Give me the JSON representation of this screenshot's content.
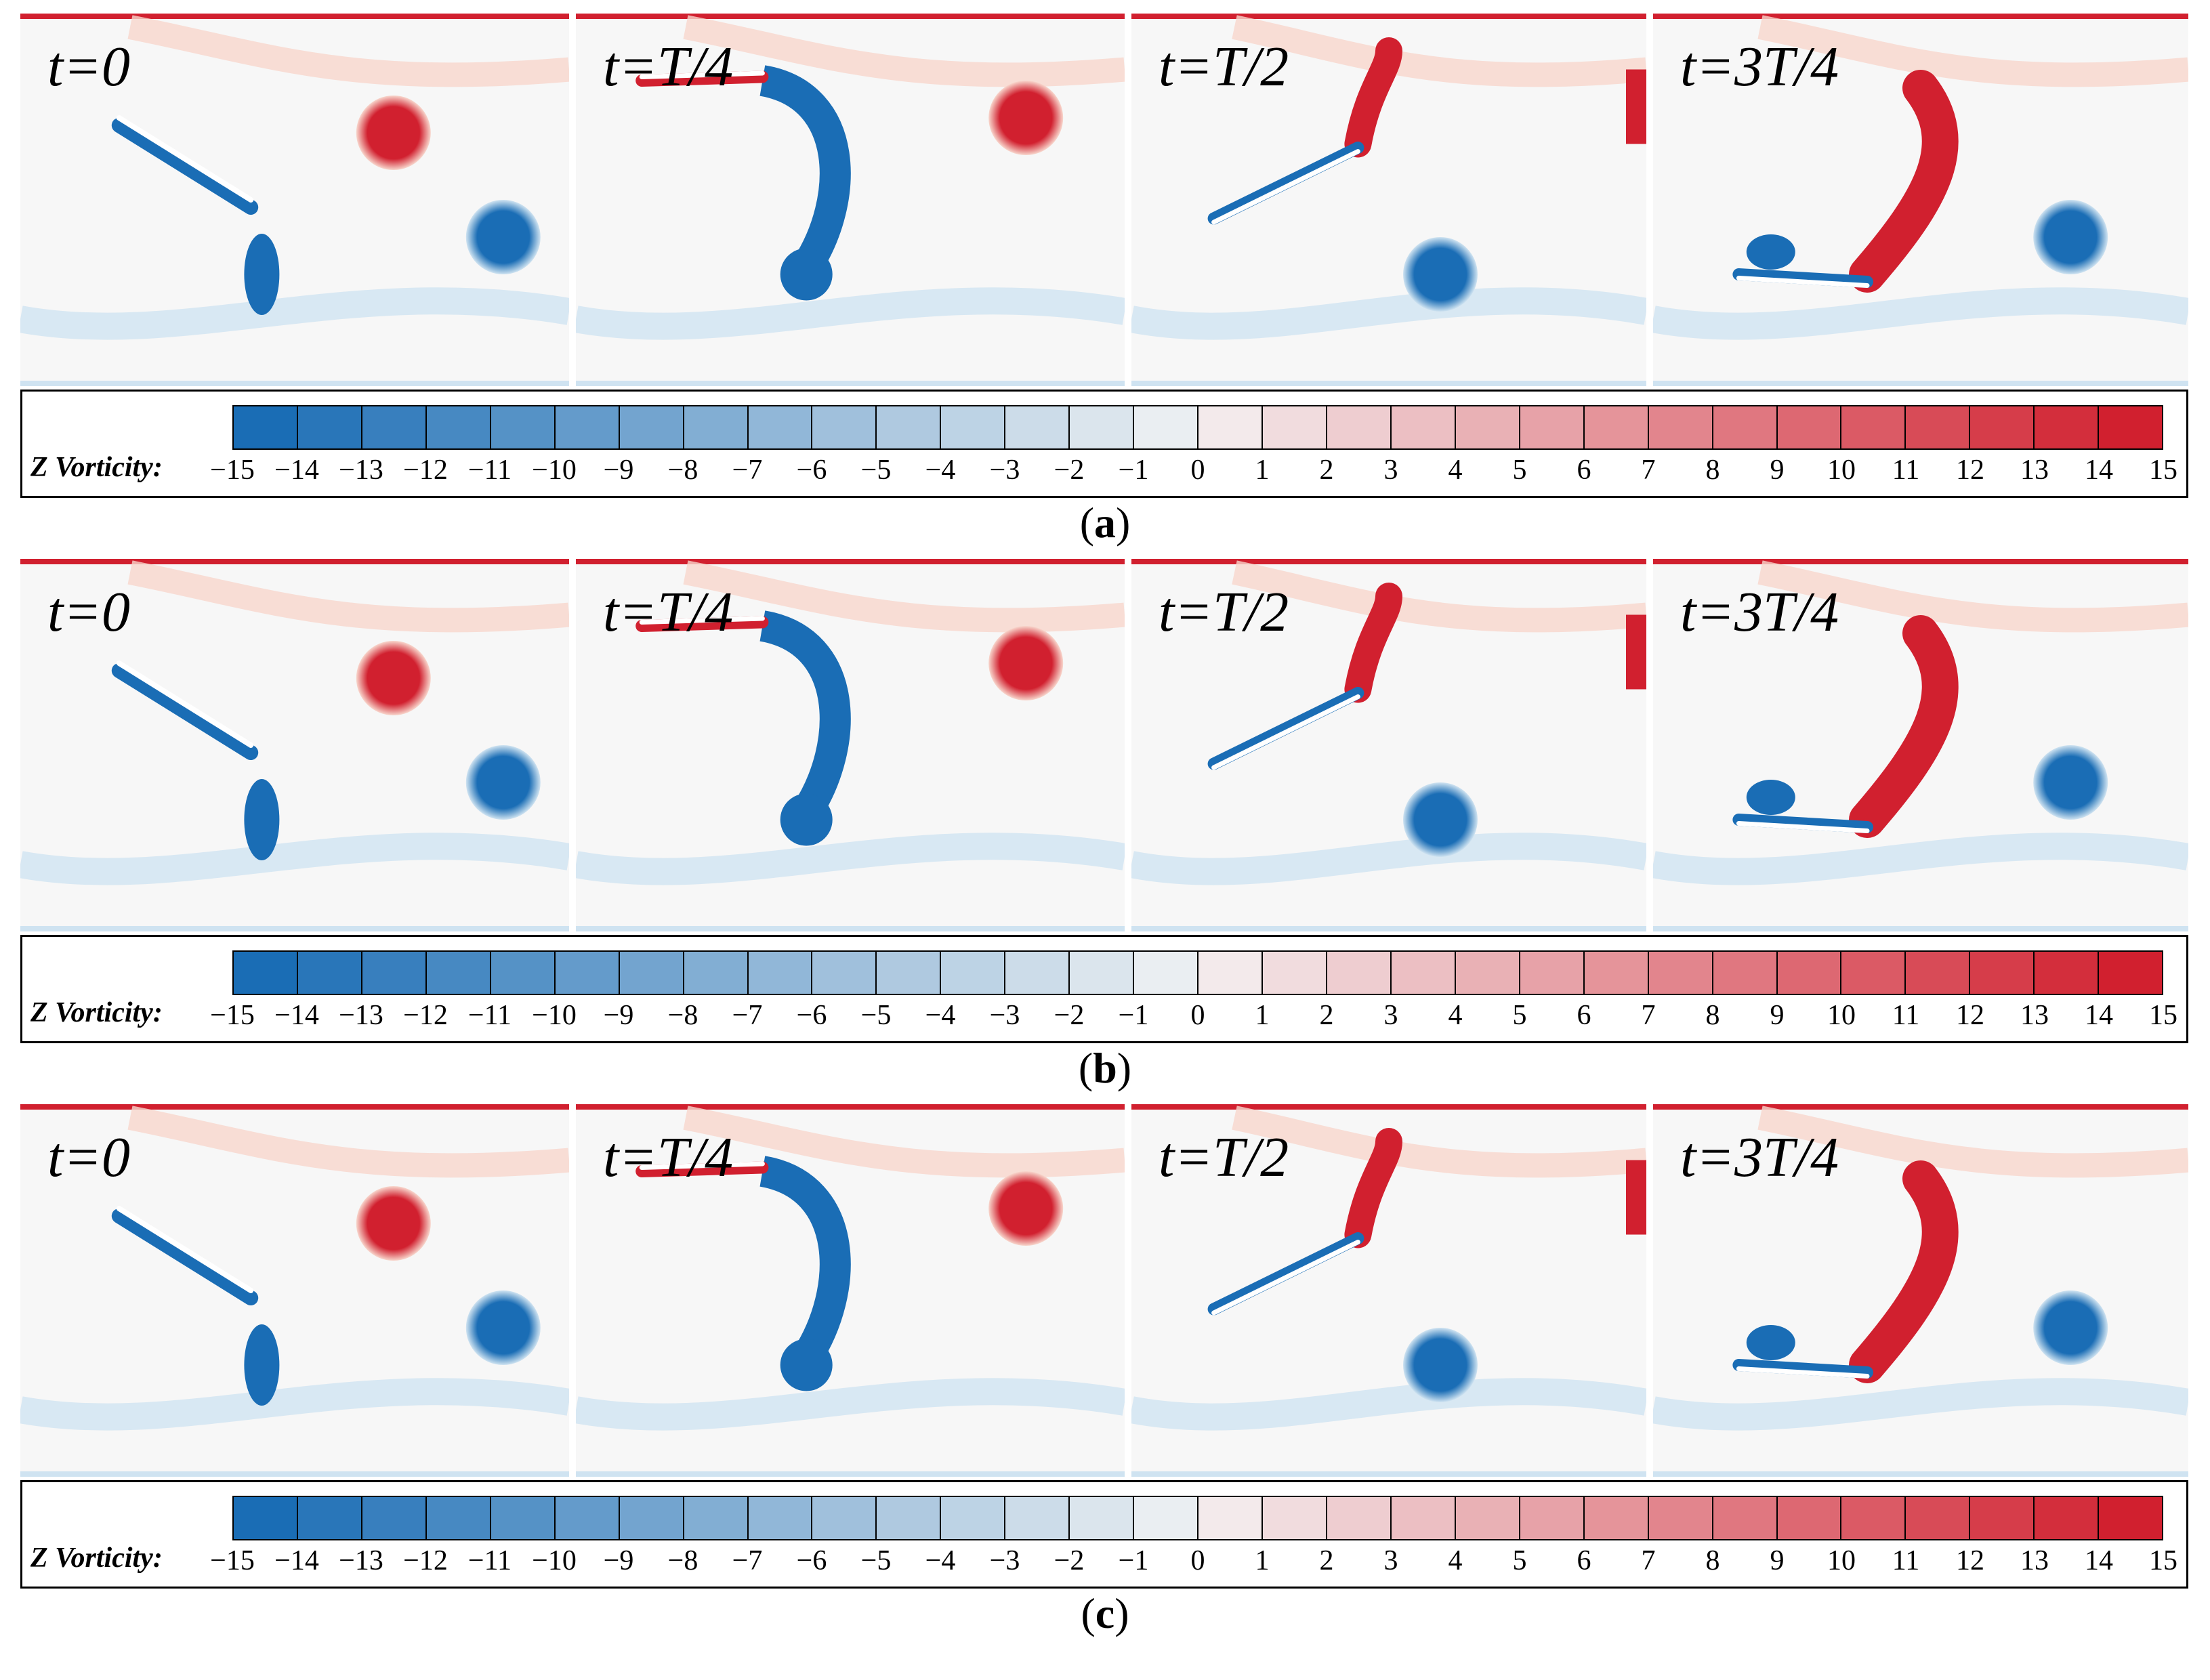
{
  "colors": {
    "negative": "#1a6db5",
    "positive": "#d1202f",
    "background": "#f7f7f7",
    "light_negative": "#cfe3f1",
    "light_positive": "#f8d6cc"
  },
  "figure": {
    "rows": [
      {
        "caption_open": "(",
        "caption_letter": "a",
        "caption_close": ")",
        "panels": [
          {
            "time_label": "t=0"
          },
          {
            "time_label": "t=T/4"
          },
          {
            "time_label": "t=T/2"
          },
          {
            "time_label": "t=3T/4"
          }
        ]
      },
      {
        "caption_open": "(",
        "caption_letter": "b",
        "caption_close": ")",
        "panels": [
          {
            "time_label": "t=0"
          },
          {
            "time_label": "t=T/4"
          },
          {
            "time_label": "t=T/2"
          },
          {
            "time_label": "t=3T/4"
          }
        ]
      },
      {
        "caption_open": "(",
        "caption_letter": "c",
        "caption_close": ")",
        "panels": [
          {
            "time_label": "t=0"
          },
          {
            "time_label": "t=T/4"
          },
          {
            "time_label": "t=T/2"
          },
          {
            "time_label": "t=3T/4"
          }
        ]
      }
    ],
    "legend": {
      "title": "Z Vorticity:",
      "ticks": [
        "−15",
        "−14",
        "−13",
        "−12",
        "−11",
        "−10",
        "−9",
        "−8",
        "−7",
        "−6",
        "−5",
        "−4",
        "−3",
        "−2",
        "−1",
        "0",
        "1",
        "2",
        "3",
        "4",
        "5",
        "6",
        "7",
        "8",
        "9",
        "10",
        "11",
        "12",
        "13",
        "14",
        "15"
      ],
      "min": -15,
      "max": 15,
      "levels": 30
    }
  }
}
